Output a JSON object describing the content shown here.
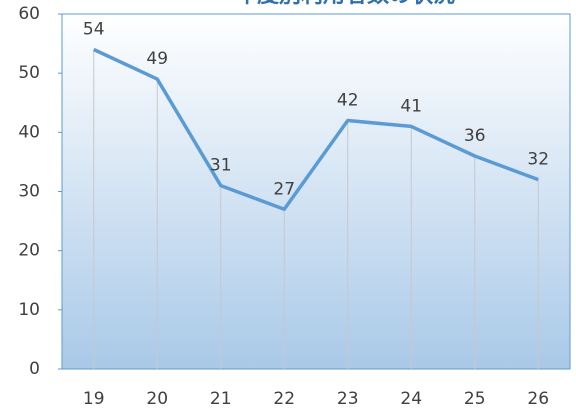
{
  "chart_data": {
    "type": "line",
    "title": "年度別利用者数の状況",
    "categories": [
      "19",
      "20",
      "21",
      "22",
      "23",
      "24",
      "25",
      "26"
    ],
    "series": [
      {
        "name": "利用者数",
        "color": "#5b9bd5",
        "values": [
          54,
          49,
          31,
          27,
          42,
          41,
          36,
          32
        ]
      }
    ],
    "ylim": [
      0,
      60
    ],
    "yticks": [
      0,
      10,
      20,
      30,
      40,
      50,
      60
    ],
    "drop_lines": true,
    "data_labels": true,
    "legend": false
  }
}
